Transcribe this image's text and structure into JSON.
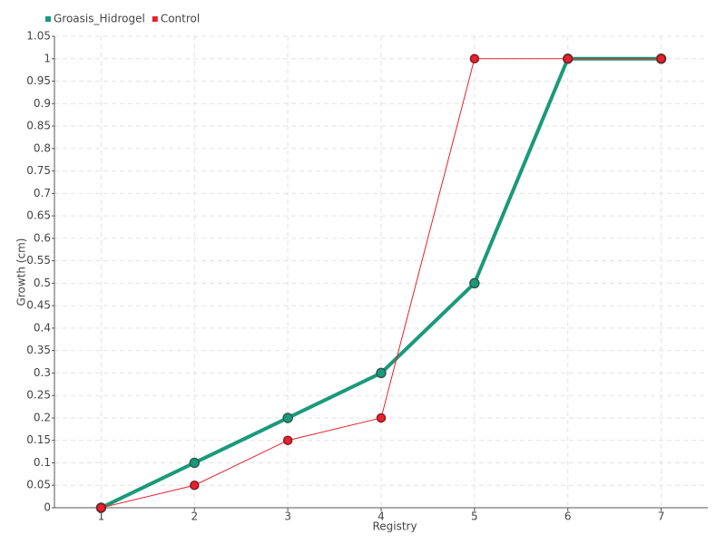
{
  "chart_data": {
    "type": "line",
    "x_label": "Registry",
    "y_label": "Growth (cm)",
    "categories": [
      "1",
      "2",
      "3",
      "4",
      "5",
      "6",
      "7"
    ],
    "series": [
      {
        "name": "Groasis_Hidrogel",
        "color": "#1a9a7a",
        "values": [
          0,
          0.1,
          0.2,
          0.3,
          0.5,
          1,
          1
        ]
      },
      {
        "name": "Control",
        "color": "#e8212e",
        "values": [
          0,
          0.05,
          0.15,
          0.2,
          1,
          1,
          1
        ]
      }
    ],
    "ylim": [
      0,
      1.05
    ],
    "yticks": [
      0,
      0.05,
      0.1,
      0.15,
      0.2,
      0.25,
      0.3,
      0.35,
      0.4,
      0.45,
      0.5,
      0.55,
      0.6,
      0.65,
      0.7,
      0.75,
      0.8,
      0.85,
      0.9,
      0.95,
      1,
      1.05
    ],
    "grid": true,
    "legend": "top-left"
  }
}
